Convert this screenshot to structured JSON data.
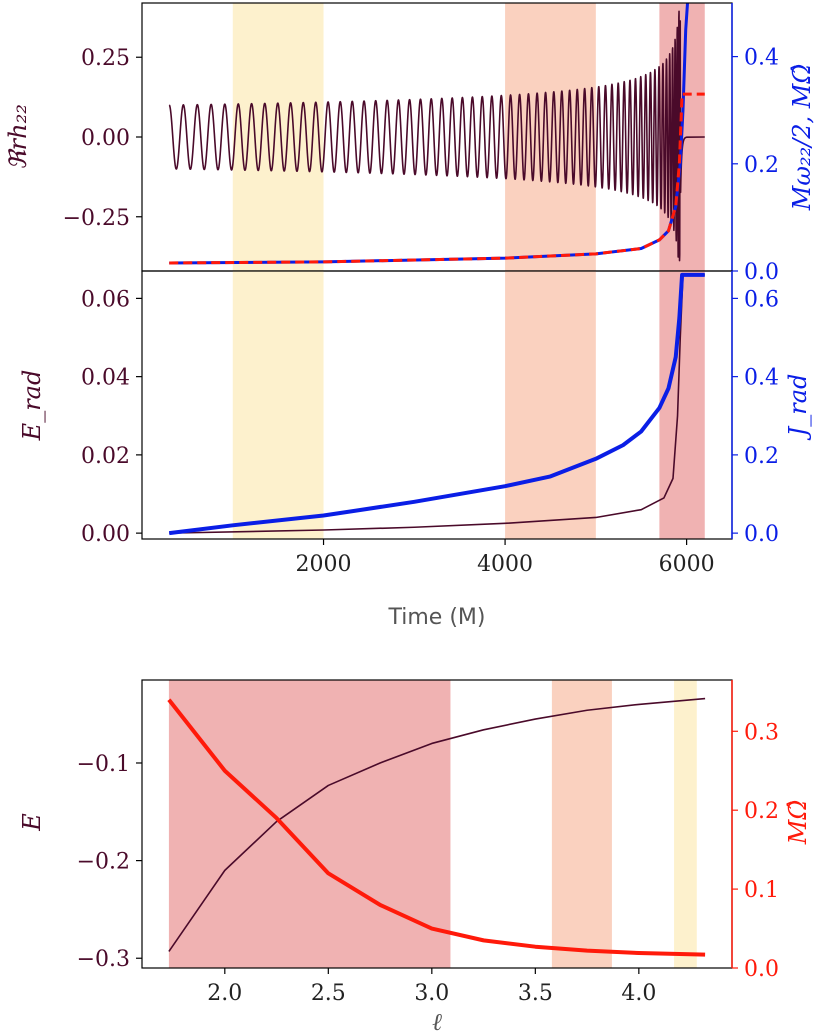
{
  "colors": {
    "maroon": "#4a0a2a",
    "blue": "#0a1ee6",
    "red": "#ff1a0a",
    "band_yellow": "#fdf0c8",
    "band_orange": "#f9ccb8",
    "band_red": "#eeaaaa"
  },
  "chart_data": [
    {
      "id": "top",
      "type": "line",
      "left_ylabel": "ℜrh₂₂",
      "right_ylabel": "Mω₂₂/2, MΩ̂",
      "xlim": [
        0,
        6500
      ],
      "ylim_left": [
        -0.42,
        0.42
      ],
      "ylim_right": [
        0,
        0.5
      ],
      "left_ticks": [
        {
          "v": 0.25,
          "t": "0.25"
        },
        {
          "v": 0.0,
          "t": "0.00"
        },
        {
          "v": -0.25,
          "t": "−0.25"
        }
      ],
      "right_ticks": [
        {
          "v": 0.4,
          "t": "0.4"
        },
        {
          "v": 0.2,
          "t": "0.2"
        },
        {
          "v": 0.0,
          "t": "0.0"
        }
      ],
      "bands": [
        {
          "x0": 1000,
          "x1": 2000,
          "color": "yellow"
        },
        {
          "x0": 4000,
          "x1": 5000,
          "color": "orange"
        },
        {
          "x0": 5700,
          "x1": 6200,
          "color": "red"
        }
      ],
      "series": [
        {
          "name": "Re r h22",
          "axis": "left",
          "color": "maroon",
          "t_start": 300,
          "t_merger": 5930,
          "t_end": 6000,
          "amp_start": 0.1,
          "cycles": 60
        },
        {
          "name": "M omega22 / 2",
          "axis": "right",
          "color": "blue",
          "style": "solid",
          "points": [
            [
              300,
              0.015
            ],
            [
              2000,
              0.017
            ],
            [
              4000,
              0.024
            ],
            [
              5000,
              0.032
            ],
            [
              5500,
              0.042
            ],
            [
              5700,
              0.058
            ],
            [
              5800,
              0.075
            ],
            [
              5880,
              0.12
            ],
            [
              5930,
              0.2
            ],
            [
              5960,
              0.3
            ],
            [
              5990,
              0.45
            ],
            [
              6010,
              0.5
            ]
          ]
        },
        {
          "name": "M Omega hat",
          "axis": "right",
          "color": "red",
          "style": "dashed",
          "points": [
            [
              300,
              0.015
            ],
            [
              2000,
              0.017
            ],
            [
              4000,
              0.024
            ],
            [
              5000,
              0.032
            ],
            [
              5500,
              0.042
            ],
            [
              5700,
              0.058
            ],
            [
              5800,
              0.075
            ],
            [
              5880,
              0.12
            ],
            [
              5920,
              0.2
            ],
            [
              5950,
              0.33
            ],
            [
              6200,
              0.33
            ]
          ]
        }
      ]
    },
    {
      "id": "mid",
      "type": "line",
      "left_ylabel": "E_rad",
      "right_ylabel": "J_rad",
      "xlabel": "Time (M)",
      "xlim": [
        0,
        6500
      ],
      "ylim_left": [
        -0.0015,
        0.067
      ],
      "ylim_right": [
        -0.015,
        0.67
      ],
      "x_ticks": [
        {
          "v": 2000,
          "t": "2000"
        },
        {
          "v": 4000,
          "t": "4000"
        },
        {
          "v": 6000,
          "t": "6000"
        }
      ],
      "left_ticks": [
        {
          "v": 0.06,
          "t": "0.06"
        },
        {
          "v": 0.04,
          "t": "0.04"
        },
        {
          "v": 0.02,
          "t": "0.02"
        },
        {
          "v": 0.0,
          "t": "0.00"
        }
      ],
      "right_ticks": [
        {
          "v": 0.6,
          "t": "0.6"
        },
        {
          "v": 0.4,
          "t": "0.4"
        },
        {
          "v": 0.2,
          "t": "0.2"
        },
        {
          "v": 0.0,
          "t": "0.0"
        }
      ],
      "bands": [
        {
          "x0": 1000,
          "x1": 2000,
          "color": "yellow"
        },
        {
          "x0": 4000,
          "x1": 5000,
          "color": "orange"
        },
        {
          "x0": 5700,
          "x1": 6200,
          "color": "red"
        }
      ],
      "series": [
        {
          "name": "E_rad",
          "axis": "left",
          "color": "maroon",
          "points": [
            [
              300,
              0.0
            ],
            [
              2000,
              0.0008
            ],
            [
              3000,
              0.0015
            ],
            [
              4000,
              0.0025
            ],
            [
              5000,
              0.004
            ],
            [
              5500,
              0.006
            ],
            [
              5750,
              0.009
            ],
            [
              5850,
              0.014
            ],
            [
              5900,
              0.03
            ],
            [
              5930,
              0.05
            ],
            [
              5960,
              0.066
            ],
            [
              6200,
              0.066
            ]
          ]
        },
        {
          "name": "J_rad",
          "axis": "right",
          "color": "blue",
          "points": [
            [
              300,
              0.0
            ],
            [
              1000,
              0.02
            ],
            [
              2000,
              0.045
            ],
            [
              3000,
              0.08
            ],
            [
              4000,
              0.12
            ],
            [
              4500,
              0.145
            ],
            [
              5000,
              0.19
            ],
            [
              5300,
              0.225
            ],
            [
              5500,
              0.26
            ],
            [
              5700,
              0.32
            ],
            [
              5800,
              0.37
            ],
            [
              5880,
              0.45
            ],
            [
              5920,
              0.55
            ],
            [
              5950,
              0.66
            ],
            [
              6200,
              0.66
            ]
          ]
        }
      ]
    },
    {
      "id": "bottom",
      "type": "line",
      "left_ylabel": "E",
      "right_ylabel": "MΩ̂",
      "xlabel": "ℓ",
      "xlim": [
        1.6,
        4.45
      ],
      "ylim_left": [
        -0.31,
        -0.015
      ],
      "ylim_right": [
        0,
        0.365
      ],
      "x_ticks": [
        {
          "v": 2.0,
          "t": "2.0"
        },
        {
          "v": 2.5,
          "t": "2.5"
        },
        {
          "v": 3.0,
          "t": "3.0"
        },
        {
          "v": 3.5,
          "t": "3.5"
        },
        {
          "v": 4.0,
          "t": "4.0"
        }
      ],
      "left_ticks": [
        {
          "v": -0.1,
          "t": "−0.1"
        },
        {
          "v": -0.2,
          "t": "−0.2"
        },
        {
          "v": -0.3,
          "t": "−0.3"
        }
      ],
      "right_ticks": [
        {
          "v": 0.3,
          "t": "0.3"
        },
        {
          "v": 0.2,
          "t": "0.2"
        },
        {
          "v": 0.1,
          "t": "0.1"
        },
        {
          "v": 0.0,
          "t": "0.0"
        }
      ],
      "bands": [
        {
          "x0": 1.73,
          "x1": 3.09,
          "color": "red"
        },
        {
          "x0": 3.58,
          "x1": 3.87,
          "color": "orange"
        },
        {
          "x0": 4.17,
          "x1": 4.28,
          "color": "yellow"
        }
      ],
      "series": [
        {
          "name": "E",
          "axis": "left",
          "color": "maroon",
          "points": [
            [
              1.73,
              -0.293
            ],
            [
              2.0,
              -0.21
            ],
            [
              2.25,
              -0.16
            ],
            [
              2.5,
              -0.123
            ],
            [
              2.75,
              -0.1
            ],
            [
              3.0,
              -0.08
            ],
            [
              3.25,
              -0.066
            ],
            [
              3.5,
              -0.055
            ],
            [
              3.75,
              -0.046
            ],
            [
              4.0,
              -0.04
            ],
            [
              4.32,
              -0.034
            ]
          ]
        },
        {
          "name": "M Omega hat",
          "axis": "right",
          "color": "red",
          "points": [
            [
              1.73,
              0.34
            ],
            [
              2.0,
              0.25
            ],
            [
              2.25,
              0.19
            ],
            [
              2.5,
              0.12
            ],
            [
              2.75,
              0.08
            ],
            [
              3.0,
              0.05
            ],
            [
              3.25,
              0.035
            ],
            [
              3.5,
              0.027
            ],
            [
              3.75,
              0.022
            ],
            [
              4.0,
              0.019
            ],
            [
              4.32,
              0.017
            ]
          ]
        }
      ]
    }
  ]
}
